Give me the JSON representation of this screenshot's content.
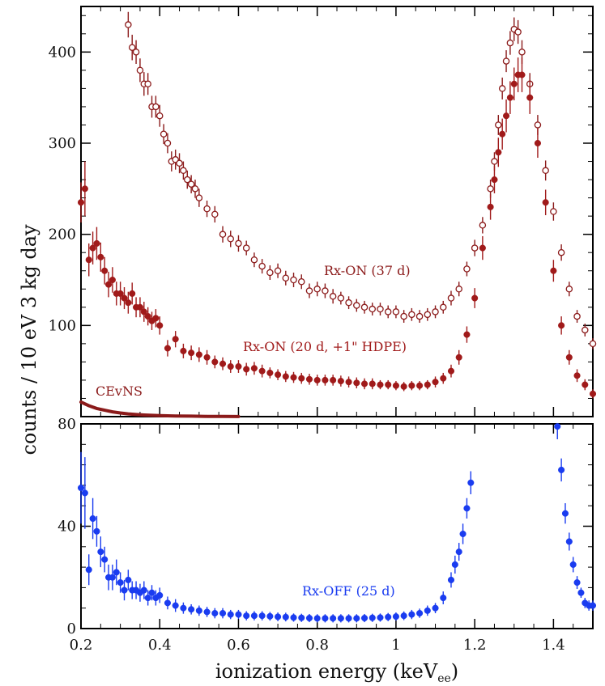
{
  "chart_data": [
    {
      "type": "scatter",
      "panel": "top",
      "title": "",
      "xlabel": "",
      "ylabel": "counts / 10 eV 3 kg day",
      "xlim": [
        0.2,
        1.5
      ],
      "ylim": [
        0,
        450
      ],
      "yticks": [
        100,
        200,
        300,
        400
      ],
      "xticks": [
        0.2,
        0.4,
        0.6,
        0.8,
        1.0,
        1.2,
        1.4
      ],
      "series": [
        {
          "name": "Rx-ON (37 d)",
          "style": "open-circles",
          "color": "#8b1a1a",
          "x": [
            0.32,
            0.33,
            0.34,
            0.35,
            0.36,
            0.37,
            0.38,
            0.39,
            0.4,
            0.41,
            0.42,
            0.43,
            0.44,
            0.45,
            0.46,
            0.47,
            0.48,
            0.49,
            0.5,
            0.52,
            0.54,
            0.56,
            0.58,
            0.6,
            0.62,
            0.64,
            0.66,
            0.68,
            0.7,
            0.72,
            0.74,
            0.76,
            0.78,
            0.8,
            0.82,
            0.84,
            0.86,
            0.88,
            0.9,
            0.92,
            0.94,
            0.96,
            0.98,
            1.0,
            1.02,
            1.04,
            1.06,
            1.08,
            1.1,
            1.12,
            1.14,
            1.16,
            1.18,
            1.2,
            1.22,
            1.24,
            1.25,
            1.26,
            1.27,
            1.28,
            1.29,
            1.3,
            1.31,
            1.32,
            1.34,
            1.36,
            1.38,
            1.4,
            1.42,
            1.44,
            1.46,
            1.48,
            1.5
          ],
          "y": [
            430,
            405,
            400,
            380,
            365,
            365,
            340,
            340,
            330,
            310,
            300,
            280,
            282,
            278,
            270,
            260,
            255,
            250,
            240,
            228,
            222,
            200,
            195,
            190,
            185,
            172,
            165,
            158,
            160,
            152,
            150,
            148,
            138,
            140,
            138,
            132,
            130,
            125,
            122,
            120,
            118,
            118,
            115,
            115,
            110,
            112,
            110,
            112,
            115,
            120,
            130,
            140,
            162,
            185,
            210,
            250,
            280,
            320,
            360,
            390,
            410,
            425,
            422,
            400,
            365,
            320,
            270,
            225,
            180,
            140,
            110,
            95,
            80
          ],
          "err": [
            14,
            14,
            13,
            13,
            13,
            12,
            12,
            12,
            12,
            11,
            11,
            11,
            11,
            11,
            10,
            10,
            10,
            10,
            10,
            9,
            9,
            9,
            9,
            9,
            8,
            8,
            8,
            8,
            8,
            8,
            8,
            8,
            8,
            8,
            8,
            8,
            7,
            7,
            7,
            7,
            7,
            7,
            7,
            7,
            7,
            7,
            7,
            7,
            7,
            7,
            8,
            8,
            8,
            9,
            9,
            10,
            10,
            11,
            12,
            12,
            13,
            13,
            13,
            13,
            12,
            11,
            11,
            10,
            9,
            8,
            7,
            7,
            6
          ]
        },
        {
          "name": "Rx-ON (20 d, +1\" HDPE)",
          "style": "filled-circles",
          "color": "#a01a1a",
          "x": [
            0.2,
            0.21,
            0.22,
            0.23,
            0.24,
            0.25,
            0.26,
            0.27,
            0.28,
            0.29,
            0.3,
            0.31,
            0.32,
            0.33,
            0.34,
            0.35,
            0.36,
            0.37,
            0.38,
            0.39,
            0.4,
            0.42,
            0.44,
            0.46,
            0.48,
            0.5,
            0.52,
            0.54,
            0.56,
            0.58,
            0.6,
            0.62,
            0.64,
            0.66,
            0.68,
            0.7,
            0.72,
            0.74,
            0.76,
            0.78,
            0.8,
            0.82,
            0.84,
            0.86,
            0.88,
            0.9,
            0.92,
            0.94,
            0.96,
            0.98,
            1.0,
            1.02,
            1.04,
            1.06,
            1.08,
            1.1,
            1.12,
            1.14,
            1.16,
            1.18,
            1.2,
            1.22,
            1.24,
            1.25,
            1.26,
            1.27,
            1.28,
            1.29,
            1.3,
            1.31,
            1.32,
            1.34,
            1.36,
            1.38,
            1.4,
            1.42,
            1.44,
            1.46,
            1.48,
            1.5
          ],
          "y": [
            235,
            250,
            172,
            185,
            190,
            175,
            160,
            145,
            150,
            135,
            135,
            130,
            125,
            135,
            120,
            120,
            115,
            110,
            105,
            108,
            100,
            75,
            85,
            72,
            70,
            68,
            65,
            60,
            58,
            55,
            55,
            52,
            53,
            50,
            48,
            46,
            44,
            43,
            42,
            41,
            40,
            40,
            40,
            39,
            38,
            37,
            36,
            36,
            35,
            35,
            34,
            33,
            34,
            34,
            35,
            38,
            42,
            50,
            65,
            90,
            130,
            185,
            230,
            260,
            290,
            310,
            330,
            350,
            365,
            375,
            375,
            350,
            300,
            235,
            160,
            100,
            65,
            45,
            35,
            25
          ],
          "err": [
            22,
            30,
            18,
            18,
            18,
            16,
            15,
            14,
            14,
            13,
            13,
            12,
            12,
            12,
            11,
            11,
            11,
            10,
            10,
            10,
            10,
            9,
            9,
            8,
            8,
            8,
            8,
            7,
            7,
            7,
            7,
            7,
            7,
            7,
            6,
            6,
            6,
            6,
            6,
            6,
            6,
            6,
            6,
            6,
            6,
            6,
            6,
            6,
            5,
            5,
            5,
            5,
            5,
            5,
            5,
            6,
            6,
            7,
            8,
            9,
            11,
            13,
            14,
            15,
            16,
            17,
            18,
            18,
            18,
            19,
            19,
            18,
            16,
            14,
            12,
            10,
            8,
            7,
            6,
            5
          ]
        },
        {
          "name": "CEvNS",
          "style": "curve",
          "color": "#8b1a1a",
          "x": [
            0.2,
            0.22,
            0.24,
            0.26,
            0.28,
            0.3,
            0.32,
            0.34,
            0.36,
            0.38,
            0.4,
            0.44,
            0.48,
            0.52,
            0.56,
            0.6
          ],
          "y": [
            16,
            12,
            9,
            7,
            5.2,
            4,
            3,
            2.3,
            1.8,
            1.4,
            1.1,
            0.7,
            0.5,
            0.3,
            0.2,
            0.1
          ]
        }
      ]
    },
    {
      "type": "scatter",
      "panel": "bottom",
      "title": "",
      "xlabel": "ionization energy (keV",
      "xlabel_sub": "ee",
      "xlabel_close": ")",
      "ylabel": "counts / 10 eV 3 kg day",
      "xlim": [
        0.2,
        1.5
      ],
      "ylim": [
        0,
        80
      ],
      "yticks": [
        0,
        40,
        80
      ],
      "xticks": [
        0.2,
        0.4,
        0.6,
        0.8,
        1.0,
        1.2,
        1.4
      ],
      "series": [
        {
          "name": "Rx-OFF (25 d)",
          "style": "filled-circles",
          "color": "#1a3cf0",
          "x": [
            0.2,
            0.21,
            0.22,
            0.23,
            0.24,
            0.25,
            0.26,
            0.27,
            0.28,
            0.29,
            0.3,
            0.31,
            0.32,
            0.33,
            0.34,
            0.35,
            0.36,
            0.37,
            0.38,
            0.39,
            0.4,
            0.42,
            0.44,
            0.46,
            0.48,
            0.5,
            0.52,
            0.54,
            0.56,
            0.58,
            0.6,
            0.62,
            0.64,
            0.66,
            0.68,
            0.7,
            0.72,
            0.74,
            0.76,
            0.78,
            0.8,
            0.82,
            0.84,
            0.86,
            0.88,
            0.9,
            0.92,
            0.94,
            0.96,
            0.98,
            1.0,
            1.02,
            1.04,
            1.06,
            1.08,
            1.1,
            1.12,
            1.14,
            1.15,
            1.16,
            1.17,
            1.18,
            1.19,
            1.41,
            1.42,
            1.43,
            1.44,
            1.45,
            1.46,
            1.47,
            1.48,
            1.49,
            1.5
          ],
          "y": [
            55,
            53,
            23,
            43,
            38,
            30,
            27,
            20,
            20,
            22,
            18,
            15,
            19,
            15,
            15,
            14,
            15,
            12,
            14,
            12,
            13,
            10,
            9,
            8,
            7.5,
            7,
            6.5,
            6,
            6,
            5.5,
            5.5,
            5,
            5,
            5,
            4.8,
            4.6,
            4.5,
            4.3,
            4.2,
            4.1,
            4,
            4,
            4,
            4,
            4,
            4,
            4.1,
            4.2,
            4.3,
            4.5,
            4.7,
            5,
            5.5,
            6,
            7,
            8,
            12,
            19,
            25,
            30,
            37,
            47,
            57,
            79,
            62,
            45,
            34,
            25,
            18,
            14,
            10,
            9,
            9
          ],
          "err": [
            14,
            14,
            6,
            8,
            6,
            6,
            5,
            5,
            5,
            5,
            4,
            4,
            4,
            3.5,
            3.5,
            3.5,
            3.5,
            3,
            3,
            3,
            3,
            2.5,
            2.5,
            2.2,
            2,
            2,
            2,
            2,
            2,
            1.8,
            1.8,
            1.8,
            1.8,
            1.8,
            1.7,
            1.7,
            1.7,
            1.6,
            1.6,
            1.6,
            1.6,
            1.6,
            1.6,
            1.6,
            1.6,
            1.6,
            1.6,
            1.6,
            1.6,
            1.6,
            1.6,
            1.7,
            1.8,
            1.8,
            2,
            2,
            2.5,
            3,
            3.5,
            3.5,
            4,
            4,
            4.5,
            5,
            4.5,
            4,
            3.5,
            3,
            2.5,
            2,
            2,
            2,
            2
          ]
        }
      ]
    }
  ]
}
